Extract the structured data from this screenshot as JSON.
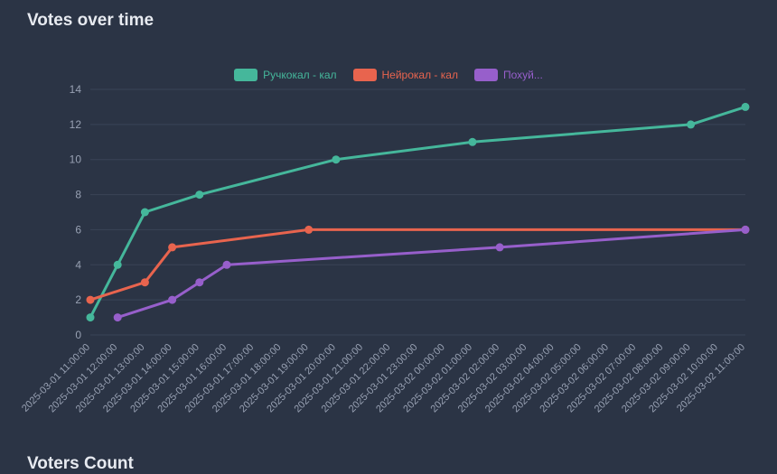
{
  "title": "Votes over time",
  "bottom_title": "Voters Count",
  "colors": {
    "background": "#2b3445",
    "grid": "#3a4357",
    "axis_label": "#98a1b3",
    "title": "#e7eaf0"
  },
  "chart_data": {
    "type": "line",
    "title": "Votes over time",
    "xlabel": "",
    "ylabel": "",
    "ylim": [
      0,
      14
    ],
    "y_ticks": [
      0,
      2,
      4,
      6,
      8,
      10,
      12,
      14
    ],
    "grid": "horizontal",
    "legend_position": "top-center",
    "categories": [
      "2025-03-01 11:00:00",
      "2025-03-01 12:00:00",
      "2025-03-01 13:00:00",
      "2025-03-01 14:00:00",
      "2025-03-01 15:00:00",
      "2025-03-01 16:00:00",
      "2025-03-01 17:00:00",
      "2025-03-01 18:00:00",
      "2025-03-01 19:00:00",
      "2025-03-01 20:00:00",
      "2025-03-01 21:00:00",
      "2025-03-01 22:00:00",
      "2025-03-01 23:00:00",
      "2025-03-02 00:00:00",
      "2025-03-02 01:00:00",
      "2025-03-02 02:00:00",
      "2025-03-02 03:00:00",
      "2025-03-02 04:00:00",
      "2025-03-02 05:00:00",
      "2025-03-02 06:00:00",
      "2025-03-02 07:00:00",
      "2025-03-02 08:00:00",
      "2025-03-02 09:00:00",
      "2025-03-02 10:00:00",
      "2025-03-02 11:00:00"
    ],
    "series": [
      {
        "name": "Ручкокал - кал",
        "color": "#45b79b",
        "points": [
          [
            0,
            1
          ],
          [
            1,
            4
          ],
          [
            2,
            7
          ],
          [
            4,
            8
          ],
          [
            9,
            10
          ],
          [
            14,
            11
          ],
          [
            22,
            12
          ],
          [
            24,
            13
          ]
        ]
      },
      {
        "name": "Нейрокал - кал",
        "color": "#e8644e",
        "points": [
          [
            0,
            2
          ],
          [
            2,
            3
          ],
          [
            3,
            5
          ],
          [
            8,
            6
          ],
          [
            24,
            6
          ]
        ]
      },
      {
        "name": "Похуй...",
        "color": "#975fcb",
        "points": [
          [
            1,
            1
          ],
          [
            3,
            2
          ],
          [
            4,
            3
          ],
          [
            5,
            4
          ],
          [
            15,
            5
          ],
          [
            24,
            6
          ]
        ]
      }
    ]
  }
}
